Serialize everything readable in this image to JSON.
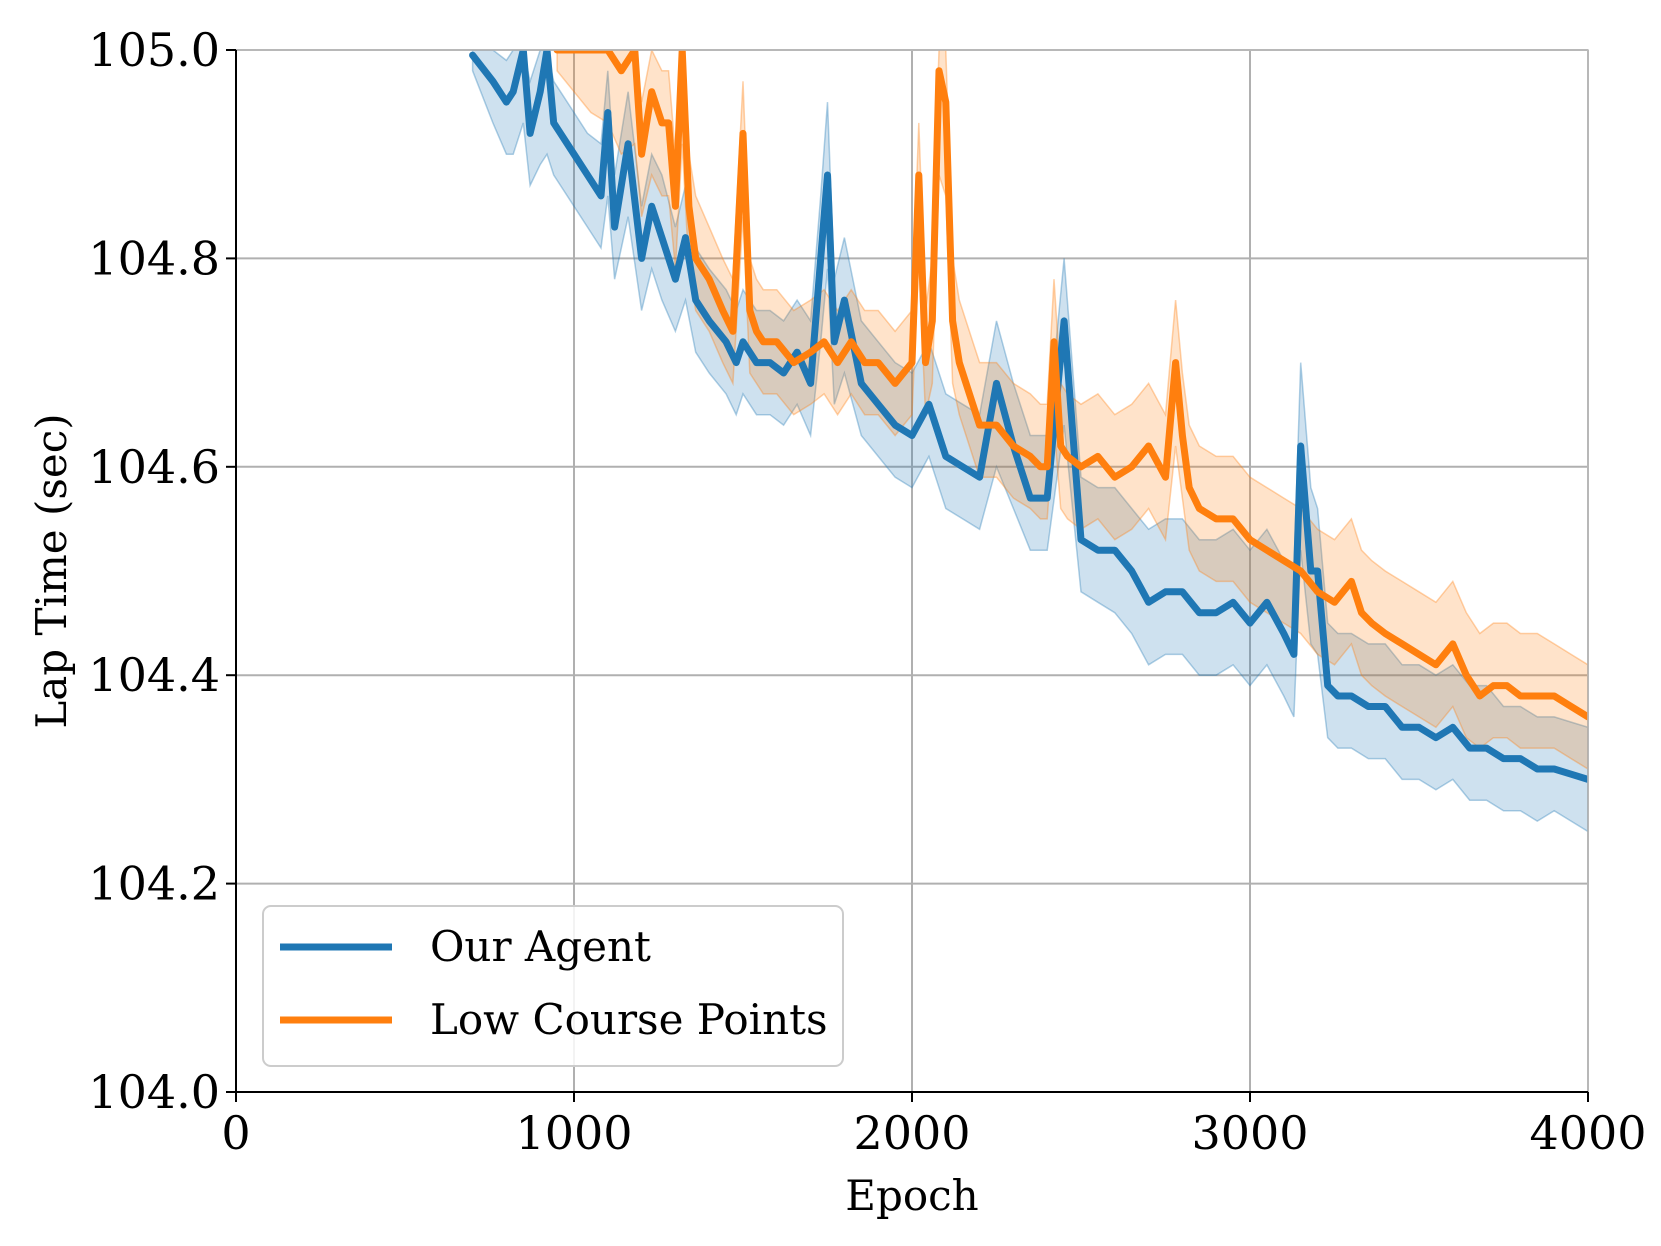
{
  "chart_data": {
    "type": "line",
    "title": "",
    "xlabel": "Epoch",
    "ylabel": "Lap Time (sec)",
    "xlim": [
      0,
      4000
    ],
    "ylim": [
      104.0,
      105.0
    ],
    "xticks": [
      0,
      1000,
      2000,
      3000,
      4000
    ],
    "xtick_labels": [
      "0",
      "1000",
      "2000",
      "3000",
      "4000"
    ],
    "yticks": [
      104.0,
      104.2,
      104.4,
      104.6,
      104.8,
      105.0
    ],
    "ytick_labels": [
      "104.0",
      "104.2",
      "104.4",
      "104.6",
      "104.8",
      "105.0"
    ],
    "grid": true,
    "legend_position": "bottom-left",
    "series": [
      {
        "name": "Our Agent",
        "color": "#1f77b4",
        "x": [
          700,
          760,
          800,
          820,
          850,
          870,
          900,
          920,
          940,
          960,
          1000,
          1040,
          1080,
          1100,
          1120,
          1160,
          1200,
          1230,
          1260,
          1300,
          1330,
          1360,
          1400,
          1450,
          1480,
          1500,
          1540,
          1580,
          1620,
          1660,
          1700,
          1730,
          1750,
          1770,
          1800,
          1850,
          1900,
          1950,
          2000,
          2050,
          2100,
          2150,
          2200,
          2250,
          2300,
          2350,
          2400,
          2450,
          2500,
          2550,
          2600,
          2650,
          2700,
          2750,
          2800,
          2850,
          2900,
          2950,
          3000,
          3050,
          3100,
          3130,
          3150,
          3180,
          3200,
          3230,
          3260,
          3300,
          3350,
          3400,
          3450,
          3500,
          3550,
          3600,
          3650,
          3700,
          3750,
          3800,
          3850,
          3900,
          3950,
          4000
        ],
        "y": [
          104.995,
          104.97,
          104.95,
          104.96,
          105.0,
          104.92,
          104.96,
          105.0,
          104.93,
          104.92,
          104.9,
          104.88,
          104.86,
          104.94,
          104.83,
          104.91,
          104.8,
          104.85,
          104.82,
          104.78,
          104.82,
          104.76,
          104.74,
          104.72,
          104.7,
          104.72,
          104.7,
          104.7,
          104.69,
          104.71,
          104.68,
          104.8,
          104.88,
          104.72,
          104.76,
          104.68,
          104.66,
          104.64,
          104.63,
          104.66,
          104.61,
          104.6,
          104.59,
          104.68,
          104.62,
          104.57,
          104.57,
          104.74,
          104.53,
          104.52,
          104.52,
          104.5,
          104.47,
          104.48,
          104.48,
          104.46,
          104.46,
          104.47,
          104.45,
          104.47,
          104.44,
          104.42,
          104.62,
          104.5,
          104.5,
          104.39,
          104.38,
          104.38,
          104.37,
          104.37,
          104.35,
          104.35,
          104.34,
          104.35,
          104.33,
          104.33,
          104.32,
          104.32,
          104.31,
          104.31,
          104.305,
          104.3
        ],
        "band_upper": [
          105.0,
          105.0,
          104.99,
          105.0,
          105.0,
          104.97,
          105.0,
          105.0,
          104.97,
          104.96,
          104.94,
          104.92,
          104.91,
          104.98,
          104.88,
          104.96,
          104.85,
          104.9,
          104.88,
          104.83,
          104.87,
          104.81,
          104.79,
          104.77,
          104.75,
          104.77,
          104.75,
          104.75,
          104.74,
          104.76,
          104.74,
          104.86,
          104.95,
          104.78,
          104.82,
          104.74,
          104.72,
          104.7,
          104.69,
          104.72,
          104.67,
          104.66,
          104.65,
          104.74,
          104.68,
          104.63,
          104.63,
          104.8,
          104.59,
          104.58,
          104.58,
          104.56,
          104.54,
          104.55,
          104.55,
          104.53,
          104.53,
          104.54,
          104.52,
          104.54,
          104.51,
          104.5,
          104.7,
          104.58,
          104.56,
          104.45,
          104.44,
          104.44,
          104.43,
          104.43,
          104.41,
          104.41,
          104.4,
          104.41,
          104.39,
          104.39,
          104.37,
          104.37,
          104.36,
          104.36,
          104.355,
          104.35
        ],
        "band_lower": [
          104.98,
          104.93,
          104.9,
          104.9,
          104.93,
          104.87,
          104.89,
          104.9,
          104.88,
          104.87,
          104.85,
          104.83,
          104.81,
          104.86,
          104.78,
          104.84,
          104.75,
          104.79,
          104.76,
          104.73,
          104.76,
          104.71,
          104.69,
          104.67,
          104.65,
          104.67,
          104.65,
          104.65,
          104.64,
          104.66,
          104.63,
          104.72,
          104.79,
          104.66,
          104.69,
          104.63,
          104.61,
          104.59,
          104.58,
          104.61,
          104.56,
          104.55,
          104.54,
          104.6,
          104.56,
          104.52,
          104.52,
          104.64,
          104.48,
          104.47,
          104.46,
          104.44,
          104.41,
          104.42,
          104.42,
          104.4,
          104.4,
          104.41,
          104.39,
          104.41,
          104.38,
          104.36,
          104.52,
          104.43,
          104.42,
          104.34,
          104.33,
          104.33,
          104.32,
          104.32,
          104.3,
          104.3,
          104.29,
          104.3,
          104.28,
          104.28,
          104.27,
          104.27,
          104.26,
          104.27,
          104.26,
          104.25
        ]
      },
      {
        "name": "Low Course Points",
        "color": "#ff7f0e",
        "x": [
          950,
          1000,
          1050,
          1100,
          1140,
          1180,
          1200,
          1230,
          1260,
          1280,
          1300,
          1320,
          1340,
          1360,
          1400,
          1440,
          1470,
          1500,
          1520,
          1540,
          1560,
          1600,
          1650,
          1700,
          1740,
          1780,
          1820,
          1860,
          1900,
          1950,
          2000,
          2020,
          2040,
          2060,
          2080,
          2100,
          2120,
          2140,
          2180,
          2200,
          2250,
          2300,
          2350,
          2380,
          2400,
          2420,
          2440,
          2460,
          2500,
          2550,
          2600,
          2650,
          2700,
          2750,
          2780,
          2800,
          2820,
          2850,
          2900,
          2950,
          3000,
          3050,
          3100,
          3150,
          3200,
          3250,
          3300,
          3330,
          3360,
          3400,
          3450,
          3500,
          3550,
          3600,
          3640,
          3680,
          3720,
          3760,
          3800,
          3850,
          3900,
          3950,
          4000
        ],
        "y": [
          105.0,
          105.0,
          105.0,
          105.0,
          104.98,
          105.0,
          104.9,
          104.96,
          104.93,
          104.93,
          104.85,
          105.0,
          104.85,
          104.8,
          104.78,
          104.75,
          104.73,
          104.92,
          104.75,
          104.73,
          104.72,
          104.72,
          104.7,
          104.71,
          104.72,
          104.7,
          104.72,
          104.7,
          104.7,
          104.68,
          104.7,
          104.88,
          104.7,
          104.74,
          104.98,
          104.95,
          104.74,
          104.7,
          104.66,
          104.64,
          104.64,
          104.62,
          104.61,
          104.6,
          104.6,
          104.72,
          104.62,
          104.61,
          104.6,
          104.61,
          104.59,
          104.6,
          104.62,
          104.59,
          104.7,
          104.63,
          104.58,
          104.56,
          104.55,
          104.55,
          104.53,
          104.52,
          104.51,
          104.5,
          104.48,
          104.47,
          104.49,
          104.46,
          104.45,
          104.44,
          104.43,
          104.42,
          104.41,
          104.43,
          104.4,
          104.38,
          104.39,
          104.39,
          104.38,
          104.38,
          104.38,
          104.37,
          104.36
        ],
        "band_upper": [
          105.0,
          105.0,
          105.0,
          105.0,
          105.0,
          105.0,
          104.95,
          105.0,
          104.98,
          104.98,
          104.9,
          105.0,
          104.9,
          104.86,
          104.83,
          104.8,
          104.78,
          104.97,
          104.8,
          104.78,
          104.77,
          104.77,
          104.75,
          104.76,
          104.77,
          104.75,
          104.77,
          104.75,
          104.75,
          104.73,
          104.75,
          104.93,
          104.75,
          104.8,
          105.0,
          105.0,
          104.8,
          104.76,
          104.72,
          104.7,
          104.7,
          104.68,
          104.67,
          104.66,
          104.66,
          104.78,
          104.68,
          104.67,
          104.66,
          104.67,
          104.65,
          104.66,
          104.68,
          104.65,
          104.76,
          104.69,
          104.64,
          104.62,
          104.61,
          104.61,
          104.59,
          104.58,
          104.57,
          104.56,
          104.54,
          104.53,
          104.55,
          104.52,
          104.51,
          104.5,
          104.49,
          104.48,
          104.47,
          104.49,
          104.46,
          104.44,
          104.45,
          104.45,
          104.44,
          104.44,
          104.43,
          104.42,
          104.41
        ],
        "band_lower": [
          104.98,
          104.96,
          104.94,
          104.93,
          104.9,
          104.91,
          104.84,
          104.88,
          104.86,
          104.86,
          104.79,
          104.91,
          104.79,
          104.75,
          104.73,
          104.7,
          104.68,
          104.84,
          104.69,
          104.68,
          104.67,
          104.67,
          104.65,
          104.66,
          104.67,
          104.65,
          104.67,
          104.65,
          104.65,
          104.63,
          104.65,
          104.8,
          104.65,
          104.68,
          104.88,
          104.86,
          104.68,
          104.65,
          104.61,
          104.59,
          104.59,
          104.57,
          104.56,
          104.55,
          104.55,
          104.64,
          104.56,
          104.55,
          104.54,
          104.55,
          104.53,
          104.54,
          104.56,
          104.53,
          104.62,
          104.57,
          104.52,
          104.5,
          104.49,
          104.49,
          104.47,
          104.46,
          104.45,
          104.44,
          104.42,
          104.41,
          104.43,
          104.4,
          104.39,
          104.38,
          104.37,
          104.36,
          104.35,
          104.37,
          104.34,
          104.33,
          104.34,
          104.34,
          104.33,
          104.33,
          104.33,
          104.32,
          104.31
        ]
      }
    ]
  }
}
